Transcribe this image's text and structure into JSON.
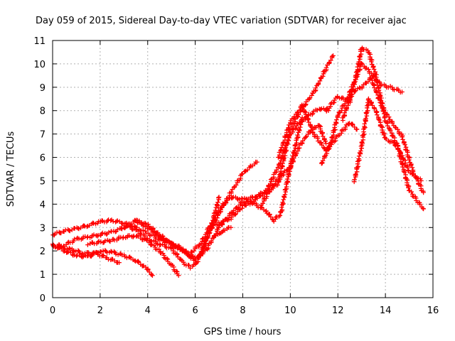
{
  "chart_data": {
    "type": "scatter",
    "title": "Day 059 of 2015, Sidereal Day-to-day VTEC variation (SDTVAR) for receiver ajac",
    "xlabel": "GPS time / hours",
    "ylabel": "SDTVAR / TECUs",
    "xlim": [
      0,
      16
    ],
    "ylim": [
      0,
      11
    ],
    "xticks": [
      "0",
      "2",
      "4",
      "6",
      "8",
      "10",
      "12",
      "14",
      "16"
    ],
    "yticks": [
      "0",
      "1",
      "2",
      "3",
      "4",
      "5",
      "6",
      "7",
      "8",
      "9",
      "10",
      "11"
    ],
    "grid": true,
    "marker": "+",
    "color": "#ff0000",
    "series": [
      {
        "x": [
          0.0,
          0.5,
          1.0,
          1.5,
          2.0,
          2.5,
          3.0,
          3.5,
          4.0,
          4.5,
          5.0,
          5.5,
          5.8,
          6.2,
          6.5,
          6.8,
          7.0
        ],
        "y": [
          2.7,
          2.85,
          2.95,
          3.1,
          3.25,
          3.3,
          3.2,
          3.0,
          2.75,
          2.5,
          2.3,
          2.1,
          1.7,
          1.8,
          2.6,
          3.5,
          4.3
        ]
      },
      {
        "x": [
          0.0,
          0.5,
          1.0,
          1.5,
          2.0,
          2.5,
          3.0,
          3.5,
          4.0,
          4.5,
          5.0,
          5.5,
          5.8
        ],
        "y": [
          2.2,
          2.25,
          2.5,
          2.6,
          2.7,
          2.8,
          3.0,
          3.3,
          3.1,
          2.7,
          2.3,
          2.0,
          1.8
        ]
      },
      {
        "x": [
          0.0,
          0.5,
          1.0,
          1.5,
          2.0,
          2.5,
          3.0,
          3.5,
          4.0,
          4.2
        ],
        "y": [
          2.25,
          2.0,
          1.8,
          1.75,
          2.0,
          1.95,
          1.8,
          1.6,
          1.2,
          0.95
        ]
      },
      {
        "x": [
          0.3,
          0.8,
          1.3,
          1.8,
          2.3,
          2.8
        ],
        "y": [
          2.15,
          2.05,
          1.9,
          1.9,
          1.7,
          1.5
        ]
      },
      {
        "x": [
          1.5,
          2.5,
          3.0,
          3.5,
          4.0,
          4.5,
          5.0,
          5.3
        ],
        "y": [
          2.3,
          2.45,
          2.6,
          2.65,
          2.4,
          2.0,
          1.4,
          0.95
        ]
      },
      {
        "x": [
          3.0,
          3.5,
          4.0,
          4.5,
          5.0,
          5.5,
          5.8,
          6.0,
          6.3,
          6.6,
          7.0,
          7.5,
          8.0,
          8.3,
          8.6
        ],
        "y": [
          3.1,
          2.9,
          2.5,
          2.3,
          2.1,
          1.5,
          1.3,
          1.4,
          2.0,
          2.8,
          3.6,
          4.5,
          5.3,
          5.6,
          5.8
        ]
      },
      {
        "x": [
          3.5,
          4.0,
          4.5,
          5.0,
          5.5,
          6.0,
          6.5,
          7.0,
          7.5,
          8.0,
          8.5,
          9.0,
          9.3,
          9.6,
          10.0,
          10.5
        ],
        "y": [
          3.3,
          3.0,
          2.6,
          2.3,
          2.0,
          1.6,
          2.1,
          3.0,
          3.6,
          4.1,
          4.0,
          3.7,
          3.3,
          3.6,
          5.6,
          7.7
        ]
      },
      {
        "x": [
          5.8,
          6.2,
          6.6,
          7.0,
          7.5,
          8.0,
          8.5,
          9.0,
          9.5,
          10.0,
          10.4,
          10.8,
          11.2,
          11.6
        ],
        "y": [
          1.9,
          2.3,
          2.9,
          3.8,
          4.3,
          4.2,
          4.3,
          4.6,
          5.6,
          7.0,
          7.5,
          7.8,
          8.1,
          8.0
        ]
      },
      {
        "x": [
          6.5,
          7.0,
          7.5,
          8.0,
          8.5,
          9.0,
          9.5,
          10.0,
          10.5,
          11.0,
          11.5,
          11.8
        ],
        "y": [
          2.9,
          3.2,
          3.4,
          3.9,
          4.2,
          4.5,
          4.9,
          7.2,
          8.1,
          8.8,
          9.8,
          10.35
        ]
      },
      {
        "x": [
          6.8,
          7.0,
          7.2,
          7.5
        ],
        "y": [
          2.6,
          2.7,
          2.9,
          3.0
        ]
      },
      {
        "x": [
          8.8,
          9.2,
          9.6,
          10.0,
          10.4,
          10.8,
          11.2,
          11.5
        ],
        "y": [
          4.0,
          4.7,
          5.2,
          5.6,
          6.5,
          7.1,
          7.4,
          6.6
        ]
      },
      {
        "x": [
          9.5,
          10.0,
          10.5,
          11.0,
          11.5,
          12.0,
          12.5,
          12.8
        ],
        "y": [
          6.0,
          7.5,
          8.2,
          7.0,
          6.3,
          6.9,
          7.5,
          7.2
        ]
      },
      {
        "x": [
          11.3,
          11.7,
          12.0,
          12.4,
          12.8,
          13.0,
          13.4,
          13.8,
          14.2,
          14.7
        ],
        "y": [
          5.7,
          6.6,
          7.8,
          8.5,
          9.5,
          10.0,
          9.6,
          9.1,
          9.0,
          8.8
        ]
      },
      {
        "x": [
          11.5,
          12.0,
          12.5,
          12.8,
          13.0,
          13.3,
          13.6,
          14.0,
          14.5,
          15.0,
          15.5
        ],
        "y": [
          8.0,
          8.6,
          8.4,
          9.6,
          10.7,
          10.5,
          9.5,
          7.6,
          6.5,
          5.4,
          5.0
        ]
      },
      {
        "x": [
          12.2,
          12.6,
          13.0,
          13.4,
          13.8,
          14.2,
          14.7,
          15.2,
          15.6
        ],
        "y": [
          7.6,
          8.8,
          9.0,
          9.4,
          8.3,
          7.6,
          6.9,
          5.3,
          4.5
        ]
      },
      {
        "x": [
          12.7,
          13.0,
          13.3,
          13.6,
          14.0,
          14.5,
          15.0,
          15.6
        ],
        "y": [
          5.0,
          6.5,
          8.5,
          8.0,
          6.8,
          6.5,
          4.6,
          3.8
        ]
      }
    ]
  }
}
